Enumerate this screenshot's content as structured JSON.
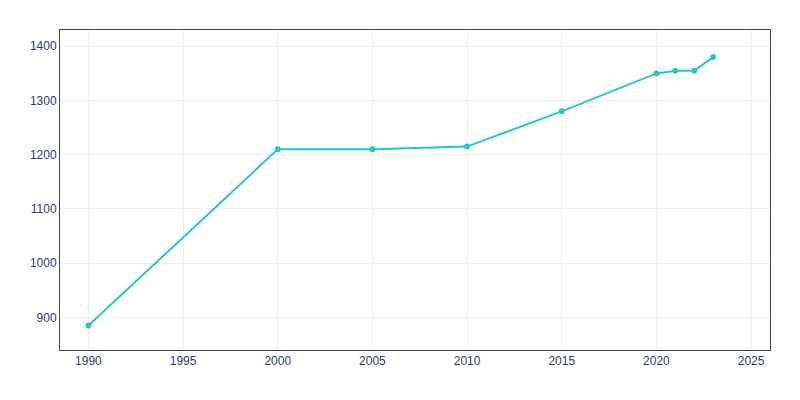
{
  "chart_data": {
    "type": "line",
    "x": [
      1990,
      2000,
      2005,
      2010,
      2015,
      2020,
      2021,
      2022,
      2023
    ],
    "values": [
      885,
      1210,
      1210,
      1215,
      1280,
      1350,
      1355,
      1355,
      1380
    ],
    "color": "#2EC4C4",
    "marker": "circle",
    "xlim": [
      1988.5,
      2026
    ],
    "ylim": [
      840,
      1430
    ],
    "xticks": [
      1990,
      1995,
      2000,
      2005,
      2010,
      2015,
      2020,
      2025
    ],
    "yticks": [
      900,
      1000,
      1100,
      1200,
      1300,
      1400
    ],
    "grid": true
  }
}
